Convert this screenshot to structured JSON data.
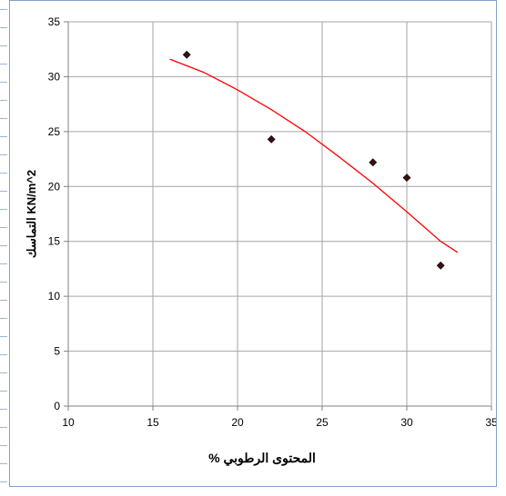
{
  "chart_data": {
    "type": "scatter",
    "title": "",
    "xlabel": "المحتوى الرطوبي %",
    "ylabel": "التماسك   KN/m^2",
    "xlim": [
      10,
      35
    ],
    "ylim": [
      0,
      35
    ],
    "x_ticks": [
      "10",
      "15",
      "20",
      "25",
      "30",
      "35"
    ],
    "y_ticks": [
      "0",
      "5",
      "10",
      "15",
      "20",
      "25",
      "30",
      "35"
    ],
    "grid": true,
    "legend": "none",
    "series": [
      {
        "points": [
          {
            "x": 17,
            "y": 32.0
          },
          {
            "x": 22,
            "y": 24.3
          },
          {
            "x": 28,
            "y": 22.2
          },
          {
            "x": 30,
            "y": 20.8
          },
          {
            "x": 32,
            "y": 12.8
          }
        ],
        "marker": "diamond",
        "color": "#3a1010"
      }
    ],
    "trendline": {
      "type": "polynomial",
      "color": "#ff0000",
      "curve": [
        {
          "x": 16,
          "y": 31.6
        },
        {
          "x": 18,
          "y": 30.4
        },
        {
          "x": 20,
          "y": 28.8
        },
        {
          "x": 22,
          "y": 27.0
        },
        {
          "x": 24,
          "y": 25.0
        },
        {
          "x": 26,
          "y": 22.7
        },
        {
          "x": 28,
          "y": 20.3
        },
        {
          "x": 30,
          "y": 17.7
        },
        {
          "x": 32,
          "y": 15.0
        },
        {
          "x": 33,
          "y": 14.0
        }
      ]
    },
    "colors": {
      "grid": "#a6a6a6",
      "axis": "#808080",
      "frame": "#7fa1c7",
      "text": "#000000"
    }
  }
}
